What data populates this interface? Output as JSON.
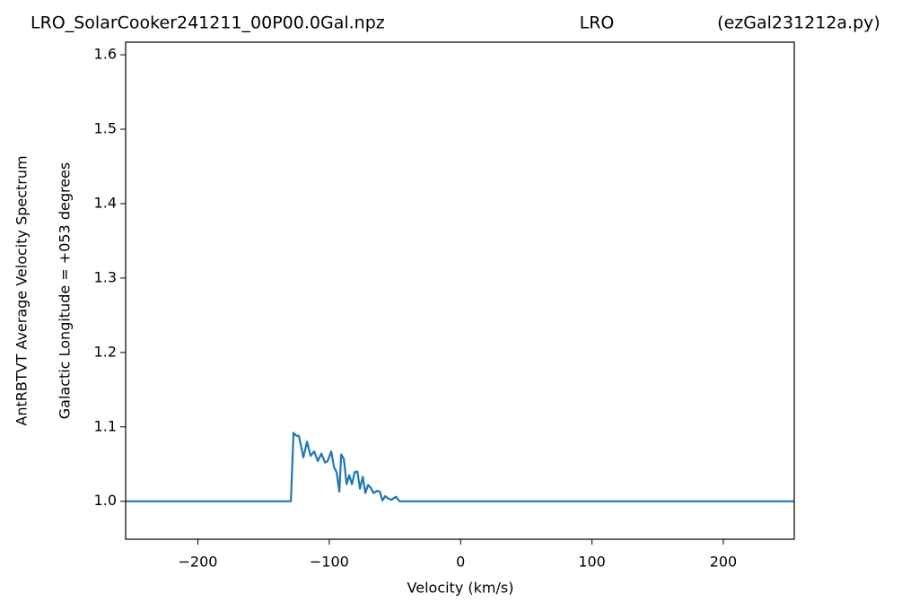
{
  "chart_data": {
    "type": "line",
    "title": [
      "LRO_SolarCooker241211_00P00.0Gal.npz",
      "LRO",
      "(ezGal231212a.py)"
    ],
    "ylabel": [
      "AntRBTVT Average Velocity Spectrum",
      "Galactic Longitude = +053 degrees"
    ],
    "xlabel": "Velocity (km/s)",
    "x": [
      -255,
      -129.2,
      -127.2,
      -125.1,
      -123.1,
      -119.7,
      -116.9,
      -114.2,
      -111.5,
      -108.7,
      -106.0,
      -103.2,
      -101.2,
      -98.5,
      -96.4,
      -94.4,
      -92.3,
      -90.9,
      -88.9,
      -86.8,
      -84.8,
      -82.7,
      -80.7,
      -78.6,
      -76.6,
      -74.5,
      -72.5,
      -70.4,
      -68.4,
      -66.3,
      -63.6,
      -61.5,
      -59.5,
      -57.4,
      -55.4,
      -52.6,
      -49.2,
      -46.5,
      254
    ],
    "series": [
      {
        "color": "#1f77b4",
        "values": [
          1.0,
          1.0,
          1.092,
          1.088,
          1.088,
          1.059,
          1.08,
          1.061,
          1.067,
          1.054,
          1.064,
          1.052,
          1.054,
          1.067,
          1.046,
          1.039,
          1.013,
          1.063,
          1.057,
          1.023,
          1.035,
          1.023,
          1.039,
          1.04,
          1.017,
          1.033,
          1.011,
          1.022,
          1.018,
          1.011,
          1.014,
          1.013,
          1.001,
          1.007,
          1.004,
          1.002,
          1.006,
          1.0,
          1.0
        ]
      }
    ],
    "xlim": [
      -255,
      254
    ],
    "ylim": [
      0.949,
      1.617
    ],
    "xticks": [
      {
        "value": -200,
        "label": "−200"
      },
      {
        "value": -100,
        "label": "−100"
      },
      0,
      100,
      200
    ],
    "yticks": [
      {
        "value": 1,
        "label": "1.0"
      },
      1.1,
      1.2,
      1.3,
      1.4,
      1.5,
      1.6
    ],
    "grid": false
  }
}
